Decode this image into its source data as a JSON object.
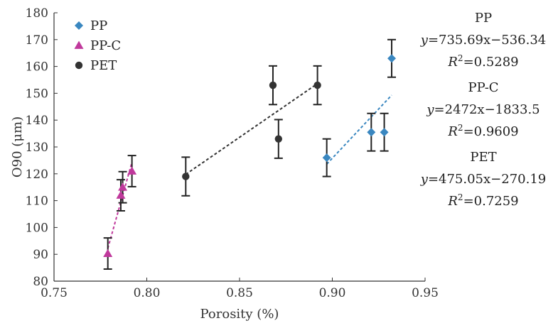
{
  "chart_data": {
    "type": "scatter",
    "xlabel": "Porosity (%)",
    "ylabel": "O90 (μm)",
    "xlim": [
      0.75,
      0.95
    ],
    "ylim": [
      80,
      180
    ],
    "x_ticks": [
      "0.75",
      "0.80",
      "0.85",
      "0.90",
      "0.95"
    ],
    "y_ticks": [
      "80",
      "90",
      "100",
      "110",
      "120",
      "130",
      "140",
      "150",
      "160",
      "170",
      "180"
    ],
    "grid": false,
    "legend_position": "top-left",
    "series": [
      {
        "name": "PP",
        "color": "#3a87c0",
        "marker": "diamond",
        "points": [
          {
            "x": 0.897,
            "y": 126,
            "err": 7
          },
          {
            "x": 0.921,
            "y": 135.5,
            "err": 7
          },
          {
            "x": 0.928,
            "y": 135.5,
            "err": 7
          },
          {
            "x": 0.932,
            "y": 163,
            "err": 7
          }
        ],
        "fit": {
          "x": [
            0.897,
            0.932
          ],
          "y": [
            123.6,
            149.3
          ]
        },
        "equation": {
          "name": "PP",
          "lhs": "y",
          "rhs": "=735.69x−536.34",
          "r2_label": "R",
          "r2_value": "=0.5289"
        }
      },
      {
        "name": "PP-C",
        "color": "#c0399c",
        "marker": "triangle",
        "points": [
          {
            "x": 0.779,
            "y": 90.3,
            "err": 5.8
          },
          {
            "x": 0.786,
            "y": 112,
            "err": 5.8
          },
          {
            "x": 0.787,
            "y": 115,
            "err": 5.8
          },
          {
            "x": 0.792,
            "y": 121,
            "err": 5.8
          }
        ],
        "fit": {
          "x": [
            0.779,
            0.792
          ],
          "y": [
            92.2,
            124.3
          ]
        },
        "equation": {
          "name": "PP-C",
          "lhs": "y",
          "rhs": "=2472x−1833.5",
          "r2_label": "R",
          "r2_value": "=0.9609"
        }
      },
      {
        "name": "PET",
        "color": "#333333",
        "marker": "circle",
        "points": [
          {
            "x": 0.821,
            "y": 119,
            "err": 7.2
          },
          {
            "x": 0.868,
            "y": 153,
            "err": 7.2
          },
          {
            "x": 0.871,
            "y": 133,
            "err": 7.2
          },
          {
            "x": 0.892,
            "y": 153,
            "err": 7.2
          }
        ],
        "fit": {
          "x": [
            0.821,
            0.892
          ],
          "y": [
            119.8,
            153.6
          ]
        },
        "equation": {
          "name": "PET",
          "lhs": "y",
          "rhs": "=475.05x−270.19",
          "r2_label": "R",
          "r2_value": "=0.7259"
        }
      }
    ]
  }
}
